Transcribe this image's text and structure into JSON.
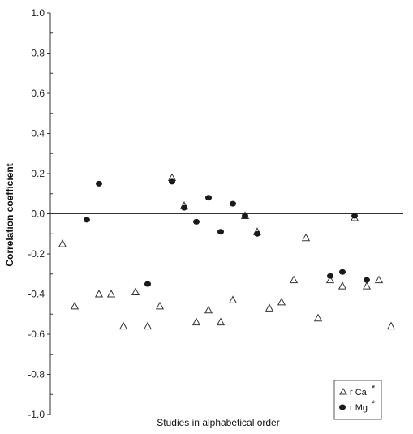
{
  "chart_data": {
    "type": "scatter",
    "title": "",
    "xlabel": "Studies in alphabetical order",
    "ylabel": "Correlation coefficient",
    "ylim": [
      -1.0,
      1.0
    ],
    "xlim": [
      0,
      29
    ],
    "yticks": [
      "1.0",
      "0.8",
      "0.6",
      "0.4",
      "0.2",
      "0.0",
      "-0.2",
      "-0.4",
      "-0.6",
      "-0.8",
      "-1.0"
    ],
    "grid": false,
    "zero_line": true,
    "legend_position": "bottom-right",
    "series": [
      {
        "name": "r Ca",
        "superscript": "*",
        "marker": "triangle-open",
        "color": "#333333",
        "points": [
          {
            "x": 1,
            "y": -0.15
          },
          {
            "x": 2,
            "y": -0.46
          },
          {
            "x": 4,
            "y": -0.4
          },
          {
            "x": 5,
            "y": -0.4
          },
          {
            "x": 6,
            "y": -0.56
          },
          {
            "x": 7,
            "y": -0.39
          },
          {
            "x": 8,
            "y": -0.56
          },
          {
            "x": 9,
            "y": -0.46
          },
          {
            "x": 10,
            "y": 0.18
          },
          {
            "x": 11,
            "y": 0.04
          },
          {
            "x": 12,
            "y": -0.54
          },
          {
            "x": 13,
            "y": -0.48
          },
          {
            "x": 14,
            "y": -0.54
          },
          {
            "x": 15,
            "y": -0.43
          },
          {
            "x": 16,
            "y": -0.01
          },
          {
            "x": 17,
            "y": -0.09
          },
          {
            "x": 18,
            "y": -0.47
          },
          {
            "x": 19,
            "y": -0.44
          },
          {
            "x": 20,
            "y": -0.33
          },
          {
            "x": 21,
            "y": -0.12
          },
          {
            "x": 22,
            "y": -0.52
          },
          {
            "x": 23,
            "y": -0.33
          },
          {
            "x": 24,
            "y": -0.36
          },
          {
            "x": 25,
            "y": -0.02
          },
          {
            "x": 26,
            "y": -0.36
          },
          {
            "x": 27,
            "y": -0.33
          },
          {
            "x": 28,
            "y": -0.56
          }
        ]
      },
      {
        "name": "r Mg",
        "superscript": "*",
        "marker": "circle-filled",
        "color": "#1a1a1a",
        "points": [
          {
            "x": 3,
            "y": -0.03
          },
          {
            "x": 4,
            "y": 0.15
          },
          {
            "x": 8,
            "y": -0.35
          },
          {
            "x": 10,
            "y": 0.16
          },
          {
            "x": 11,
            "y": 0.03
          },
          {
            "x": 12,
            "y": -0.04
          },
          {
            "x": 13,
            "y": 0.08
          },
          {
            "x": 14,
            "y": -0.09
          },
          {
            "x": 15,
            "y": 0.05
          },
          {
            "x": 16,
            "y": -0.01
          },
          {
            "x": 17,
            "y": -0.1
          },
          {
            "x": 23,
            "y": -0.31
          },
          {
            "x": 24,
            "y": -0.29
          },
          {
            "x": 25,
            "y": -0.01
          },
          {
            "x": 26,
            "y": -0.33
          }
        ]
      }
    ]
  }
}
